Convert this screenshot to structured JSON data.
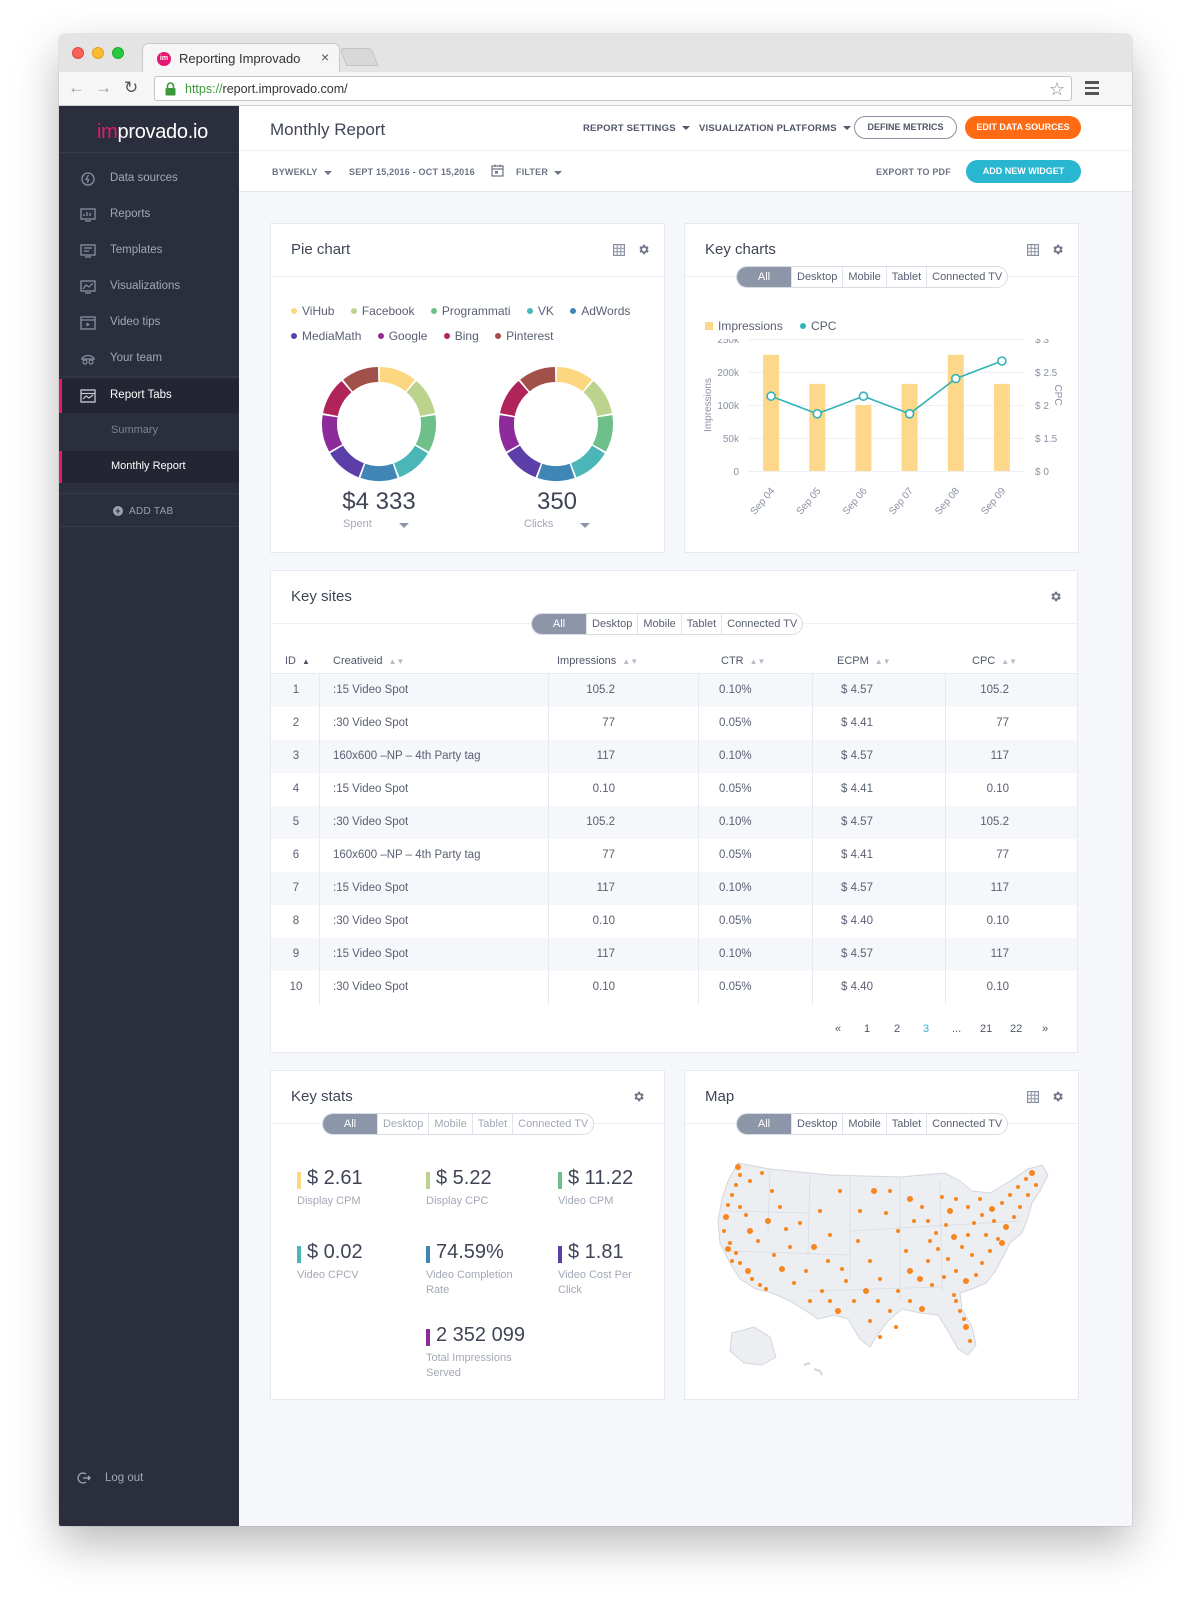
{
  "browser": {
    "tab_title": "Reporting Improvado",
    "favicon_text": "im",
    "url_scheme": "https://",
    "url_rest": "report.improvado.com/",
    "close_glyph": "×"
  },
  "sidebar": {
    "logo_accent": "im",
    "logo_rest": "provado.io",
    "items": [
      {
        "label": "Data sources",
        "icon": "data-sources-icon"
      },
      {
        "label": "Reports",
        "icon": "reports-icon"
      },
      {
        "label": "Templates",
        "icon": "templates-icon"
      },
      {
        "label": "Visualizations",
        "icon": "visualizations-icon"
      },
      {
        "label": "Video tips",
        "icon": "video-tips-icon"
      },
      {
        "label": "Your team",
        "icon": "team-icon"
      },
      {
        "label": "Report Tabs",
        "icon": "report-tabs-icon"
      }
    ],
    "sub_items": [
      {
        "label": "Summary"
      },
      {
        "label": "Monthly Report"
      }
    ],
    "add_tab": "ADD TAB",
    "logout": "Log out"
  },
  "header": {
    "title": "Monthly Report",
    "report_settings": "REPORT SETTINGS",
    "visualization_platforms": "VISUALIZATION PLATFORMS",
    "define_metrics": "DEFINE METRICS",
    "edit_data_sources": "EDIT DATA SOURCES",
    "period": "BYWEKLY",
    "date_range": "SEPT 15,2016 - OCT 15,2016",
    "filter": "FILTER",
    "export_pdf": "EXPORT TO PDF",
    "add_widget": "ADD NEW WIDGET"
  },
  "segments": [
    "All",
    "Desktop",
    "Mobile",
    "Tablet",
    "Connected TV"
  ],
  "pie_card": {
    "title": "Pie chart",
    "legend": [
      {
        "name": "ViHub",
        "color": "#fdd77f"
      },
      {
        "name": "Facebook",
        "color": "#bcd38e"
      },
      {
        "name": "Programmati",
        "color": "#6fbf8a"
      },
      {
        "name": "VK",
        "color": "#4ab6b8"
      },
      {
        "name": "AdWords",
        "color": "#3f86b6"
      },
      {
        "name": "MediaMath",
        "color": "#5b3ea8"
      },
      {
        "name": "Google",
        "color": "#8e2b9a"
      },
      {
        "name": "Bing",
        "color": "#b0245a"
      },
      {
        "name": "Pinterest",
        "color": "#a2504a"
      }
    ],
    "spent_value": "$4 333",
    "spent_label": "Spent",
    "clicks_value": "350",
    "clicks_label": "Clicks"
  },
  "key_charts": {
    "title": "Key charts",
    "legend_impressions": "Impressions",
    "legend_cpc": "CPC",
    "ylabel_left": "Impressions",
    "ylabel_right": "CPC",
    "y_ticks_left": [
      "250k",
      "200k",
      "100k",
      "50k",
      "0"
    ],
    "y_ticks_right": [
      "$ 3",
      "$ 2.5",
      "$ 2",
      "$ 1.5",
      "$ 0"
    ]
  },
  "chart_data": {
    "type": "bar",
    "categories": [
      "Sep 04",
      "Sep 05",
      "Sep 06",
      "Sep 07",
      "Sep 08",
      "Sep 09"
    ],
    "series": [
      {
        "name": "Impressions",
        "type": "bar",
        "color": "#fdd78a",
        "values": [
          220000,
          165000,
          125000,
          165000,
          220000,
          165000
        ]
      },
      {
        "name": "CPC",
        "type": "line",
        "color": "#32b3b9",
        "values": [
          1.7,
          1.3,
          1.7,
          1.3,
          2.1,
          2.5
        ]
      }
    ],
    "ylim_left": [
      0,
      250000
    ],
    "ylim_right": [
      0,
      3
    ]
  },
  "key_sites": {
    "title": "Key sites",
    "columns": [
      "ID",
      "Creativeid",
      "Impressions",
      "CTR",
      "ECPM",
      "CPC"
    ],
    "rows": [
      [
        "1",
        ":15 Video Spot",
        "105.2",
        "0.10%",
        "$ 4.57",
        "105.2"
      ],
      [
        "2",
        ":30 Video Spot",
        "77",
        "0.05%",
        "$ 4.41",
        "77"
      ],
      [
        "3",
        "160x600 –NP – 4th Party tag",
        "117",
        "0.10%",
        "$ 4.57",
        "117"
      ],
      [
        "4",
        ":15 Video Spot",
        "0.10",
        "0.05%",
        "$ 4.41",
        "0.10"
      ],
      [
        "5",
        ":30 Video Spot",
        "105.2",
        "0.10%",
        "$ 4.57",
        "105.2"
      ],
      [
        "6",
        "160x600 –NP – 4th Party tag",
        "77",
        "0.05%",
        "$ 4.41",
        "77"
      ],
      [
        "7",
        ":15 Video Spot",
        "117",
        "0.10%",
        "$ 4.57",
        "117"
      ],
      [
        "8",
        ":30 Video Spot",
        "0.10",
        "0.05%",
        "$ 4.40",
        "0.10"
      ],
      [
        "9",
        ":15 Video Spot",
        "117",
        "0.10%",
        "$ 4.57",
        "117"
      ],
      [
        "10",
        ":30 Video Spot",
        "0.10",
        "0.05%",
        "$ 4.40",
        "0.10"
      ]
    ],
    "pagination": [
      "«",
      "1",
      "2",
      "3",
      "...",
      "21",
      "22",
      "»"
    ],
    "current_page": "3"
  },
  "key_stats": {
    "title": "Key stats",
    "stats": [
      {
        "value": "$ 2.61",
        "caption": "Display CPM",
        "color": "#fdd77f"
      },
      {
        "value": "$ 5.22",
        "caption": "Display CPC",
        "color": "#bcd38e"
      },
      {
        "value": "$ 11.22",
        "caption": "Video CPM",
        "color": "#6fbf8a"
      },
      {
        "value": "$ 0.02",
        "caption": "Video CPCV",
        "color": "#4ab6b8"
      },
      {
        "value": "74.59%",
        "caption": "Video Completion Rate",
        "color": "#3f86b6"
      },
      {
        "value": "$ 1.81",
        "caption": "Video Cost Per Click",
        "color": "#5b3ea8"
      },
      {
        "value": "2 352 099",
        "caption": "Total Impressions Served",
        "color": "#8e2b9a"
      }
    ]
  },
  "map_card": {
    "title": "Map",
    "dot_color": "#f7861f"
  }
}
